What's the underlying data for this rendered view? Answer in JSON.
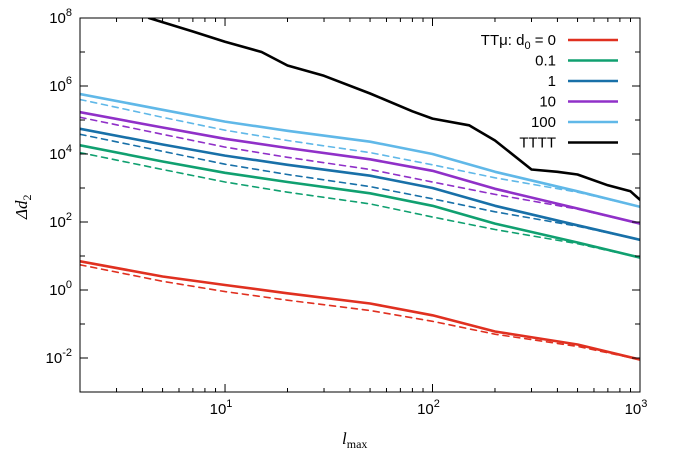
{
  "chart_data": {
    "type": "line",
    "xlabel_main": "l",
    "xlabel_sub": "max",
    "ylabel_main": "Δd",
    "ylabel_sub": "2",
    "x_scale": "log",
    "y_scale": "log",
    "xlim": [
      2,
      1000
    ],
    "ylim": [
      0.001,
      100000000
    ],
    "grid": false,
    "legend_position": "top-right",
    "x_ticks": [
      {
        "value": 10,
        "base": "10",
        "exp": "1"
      },
      {
        "value": 100,
        "base": "10",
        "exp": "2"
      },
      {
        "value": 1000,
        "base": "10",
        "exp": "3"
      }
    ],
    "y_ticks": [
      {
        "value": 0.01,
        "base": "10",
        "exp": "-2"
      },
      {
        "value": 1,
        "base": "10",
        "exp": "0"
      },
      {
        "value": 100,
        "base": "10",
        "exp": "2"
      },
      {
        "value": 10000,
        "base": "10",
        "exp": "4"
      },
      {
        "value": 1000000,
        "base": "10",
        "exp": "6"
      },
      {
        "value": 100000000,
        "base": "10",
        "exp": "8"
      }
    ],
    "legend_header": "TTμ: d",
    "legend_header_sub": "0",
    "legend_header_suffix": " = 0",
    "series": [
      {
        "name": "0",
        "color": "#e03020",
        "style": "solid",
        "x": [
          2,
          5,
          10,
          20,
          50,
          100,
          200,
          500,
          1000
        ],
        "y": [
          7,
          2.5,
          1.4,
          0.8,
          0.4,
          0.18,
          0.06,
          0.025,
          0.009
        ]
      },
      {
        "name": "0",
        "color": "#e03020",
        "style": "dashed",
        "x": [
          2,
          5,
          10,
          20,
          50,
          100,
          200,
          500,
          1000
        ],
        "y": [
          5.5,
          1.8,
          0.9,
          0.5,
          0.25,
          0.12,
          0.05,
          0.022,
          0.009
        ]
      },
      {
        "name": "0.1",
        "color": "#10a070",
        "style": "solid",
        "x": [
          2,
          5,
          10,
          20,
          50,
          100,
          200,
          500,
          1000
        ],
        "y": [
          18000,
          6000,
          2800,
          1500,
          700,
          300,
          90,
          25,
          9
        ]
      },
      {
        "name": "0.1",
        "color": "#10a070",
        "style": "dashed",
        "x": [
          2,
          5,
          10,
          20,
          50,
          100,
          200,
          500,
          1000
        ],
        "y": [
          11000,
          3500,
          1500,
          750,
          340,
          140,
          60,
          23,
          9
        ]
      },
      {
        "name": "1",
        "color": "#1870a8",
        "style": "solid",
        "x": [
          2,
          5,
          10,
          20,
          50,
          100,
          200,
          500,
          1000
        ],
        "y": [
          55000,
          19000,
          9000,
          4800,
          2300,
          1000,
          300,
          80,
          30
        ]
      },
      {
        "name": "1",
        "color": "#1870a8",
        "style": "dashed",
        "x": [
          2,
          5,
          10,
          20,
          50,
          100,
          200,
          500,
          1000
        ],
        "y": [
          38000,
          12000,
          5000,
          2500,
          1100,
          480,
          200,
          75,
          30
        ]
      },
      {
        "name": "10",
        "color": "#9030c8",
        "style": "solid",
        "x": [
          2,
          5,
          10,
          20,
          50,
          100,
          200,
          500,
          1000
        ],
        "y": [
          170000,
          60000,
          28000,
          15000,
          7000,
          3200,
          950,
          250,
          90
        ]
      },
      {
        "name": "10",
        "color": "#9030c8",
        "style": "dashed",
        "x": [
          2,
          5,
          10,
          20,
          50,
          100,
          200,
          500,
          1000
        ],
        "y": [
          120000,
          38000,
          16000,
          8000,
          3500,
          1500,
          650,
          240,
          90
        ]
      },
      {
        "name": "100",
        "color": "#60b8e8",
        "style": "solid",
        "x": [
          2,
          5,
          10,
          20,
          50,
          100,
          200,
          500,
          1000
        ],
        "y": [
          580000,
          200000,
          90000,
          48000,
          23000,
          10000,
          3000,
          800,
          280
        ]
      },
      {
        "name": "100",
        "color": "#60b8e8",
        "style": "dashed",
        "x": [
          2,
          5,
          10,
          20,
          50,
          100,
          200,
          500,
          1000
        ],
        "y": [
          400000,
          120000,
          50000,
          25000,
          11000,
          4800,
          2000,
          750,
          280
        ]
      },
      {
        "name": "TTTT",
        "color": "#000000",
        "style": "solid",
        "x": [
          4.3,
          7,
          10,
          15,
          20,
          30,
          50,
          80,
          100,
          150,
          200,
          300,
          400,
          500,
          700,
          900,
          1000
        ],
        "y": [
          100000000,
          40000000,
          20000000,
          10000000,
          4000000,
          2000000,
          600000,
          180000,
          110000,
          70000,
          25000,
          3500,
          3000,
          2500,
          1200,
          800,
          450
        ]
      }
    ],
    "legend_items": [
      {
        "label": "",
        "color": "#e03020"
      },
      {
        "label": "0.1",
        "color": "#10a070"
      },
      {
        "label": "1",
        "color": "#1870a8"
      },
      {
        "label": "10",
        "color": "#9030c8"
      },
      {
        "label": "100",
        "color": "#60b8e8"
      },
      {
        "label": "TTTT",
        "color": "#000000"
      }
    ]
  }
}
